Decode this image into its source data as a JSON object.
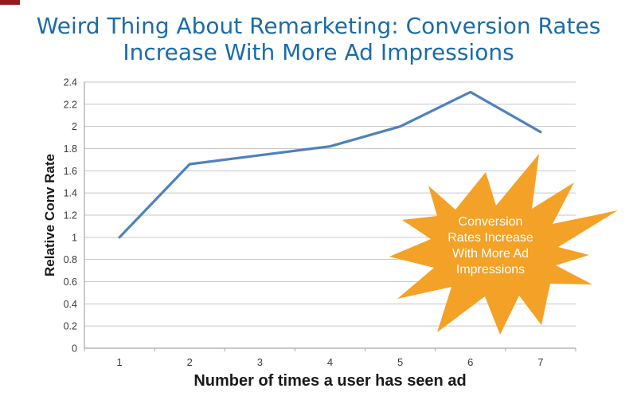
{
  "slide": {
    "title_line1": "Weird Thing About Remarketing: Conversion Rates",
    "title_line2": "Increase With More Ad Impressions",
    "title_color": "#1B6CA8",
    "corner_mark_color": "#8E1F1F"
  },
  "chart_data": {
    "type": "line",
    "categories": [
      "1",
      "2",
      "3",
      "4",
      "5",
      "6",
      "7"
    ],
    "values": [
      1,
      1.66,
      1.74,
      1.82,
      2.0,
      2.31,
      1.95
    ],
    "xlabel": "Number of times a user has seen ad",
    "ylabel": "Relative Conv Rate",
    "ylim": [
      0,
      2.4
    ],
    "y_tick_step": 0.2,
    "y_tick_labels": [
      "0",
      "0.2",
      "0.4",
      "0.6",
      "0.8",
      "1",
      "1.2",
      "1.4",
      "1.6",
      "1.8",
      "2",
      "2.2",
      "2.4"
    ],
    "grid": true,
    "legend": false,
    "line_color": "#4F81BD",
    "gridline_color": "#C6C6C6",
    "axis_color": "#A6A6A6",
    "tick_label_color": "#3A3A3A"
  },
  "callout": {
    "lines": [
      "Conversion",
      "Rates Increase",
      "With More Ad",
      "Impressions"
    ],
    "fill_color": "#F3A227",
    "text_color": "#FFFFFF"
  }
}
